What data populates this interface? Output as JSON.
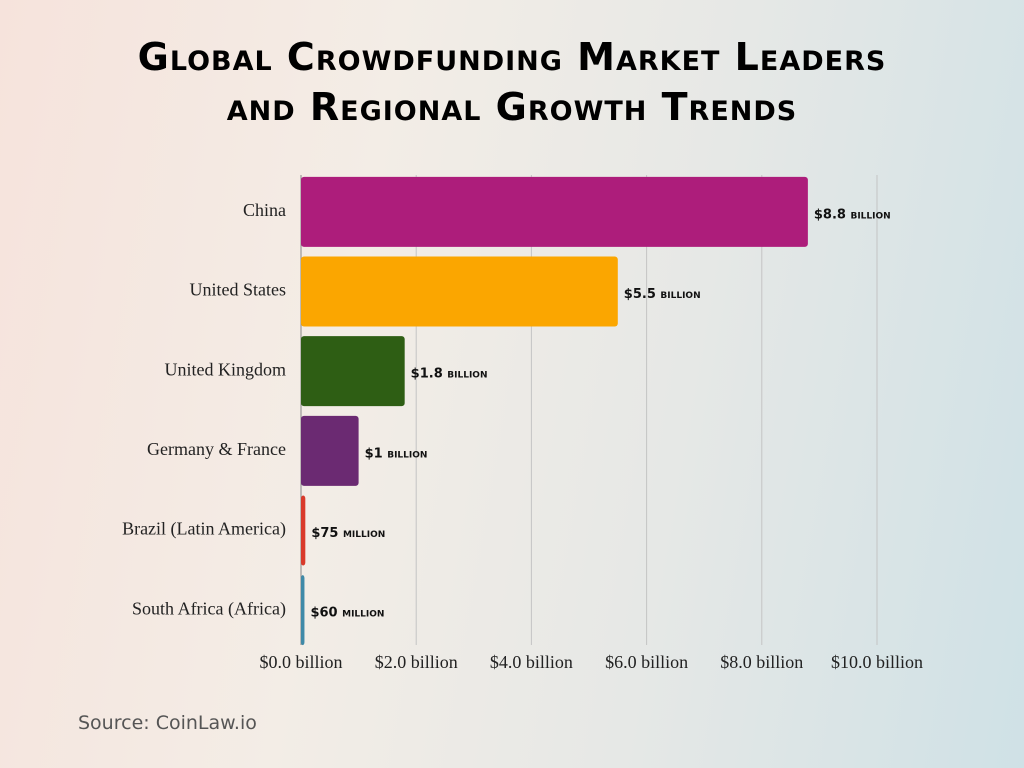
{
  "chart_data": {
    "type": "bar",
    "orientation": "horizontal",
    "title": "Global Crowdfunding Market Leaders and Regional Growth Trends",
    "categories": [
      "China",
      "United States",
      "United Kingdom",
      "Germany & France",
      "Brazil (Latin America)",
      "South Africa (Africa)"
    ],
    "values": [
      8.8,
      5.5,
      1.8,
      1,
      0.075,
      0.06
    ],
    "value_labels": [
      "$8.8 billion",
      "$5.5 billion",
      "$1.8 billion",
      "$1 billion",
      "$75 million",
      "$60 million"
    ],
    "colors": [
      "#ad1d7b",
      "#fba600",
      "#2e5e14",
      "#6b2a72",
      "#d93a2b",
      "#3f8aa8"
    ],
    "xlim": [
      0,
      10
    ],
    "xticks": [
      {
        "value": 0,
        "label": "$0.0 billion"
      },
      {
        "value": 2,
        "label": "$2.0 billion"
      },
      {
        "value": 4,
        "label": "$4.0 billion"
      },
      {
        "value": 6,
        "label": "$6.0 billion"
      },
      {
        "value": 8,
        "label": "$8.0 billion"
      },
      {
        "value": 10,
        "label": "$10.0 billion"
      }
    ],
    "grid": true,
    "source": "Source: CoinLaw.io"
  }
}
